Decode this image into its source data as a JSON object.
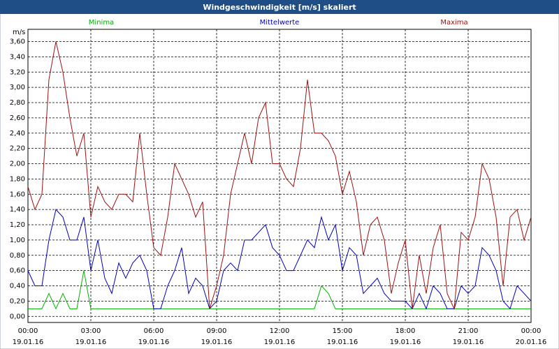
{
  "chart_data": {
    "type": "line",
    "title": "Windgeschwindigkeit [m/s] skaliert",
    "y_unit": "m/s",
    "x": [
      0,
      20,
      40,
      60,
      80,
      100,
      120,
      140,
      160,
      180,
      200,
      220,
      240,
      260,
      280,
      300,
      320,
      340,
      360,
      380,
      400,
      420,
      440,
      460,
      480,
      500,
      520,
      540,
      560,
      580,
      600,
      620,
      640,
      660,
      680,
      700,
      720,
      740,
      760,
      780,
      800,
      820,
      840,
      860,
      880,
      900,
      920,
      940,
      960,
      980,
      1000,
      1020,
      1040,
      1060,
      1080,
      1100,
      1120,
      1140,
      1160,
      1180,
      1200,
      1220,
      1240,
      1260,
      1280,
      1300,
      1320,
      1340,
      1360,
      1380,
      1400,
      1420,
      1440
    ],
    "xlim": [
      0,
      1440
    ],
    "xticks": [
      {
        "value": 0,
        "label": "00:00",
        "date": "19.01.16"
      },
      {
        "value": 180,
        "label": "03:00",
        "date": "19.01.16"
      },
      {
        "value": 360,
        "label": "06:00",
        "date": "19.01.16"
      },
      {
        "value": 540,
        "label": "09:00",
        "date": "19.01.16"
      },
      {
        "value": 720,
        "label": "12:00",
        "date": "19.01.16"
      },
      {
        "value": 900,
        "label": "15:00",
        "date": "19.01.16"
      },
      {
        "value": 1080,
        "label": "18:00",
        "date": "19.01.16"
      },
      {
        "value": 1260,
        "label": "21:00",
        "date": "19.01.16"
      },
      {
        "value": 1440,
        "label": "00:00",
        "date": "20.01.16"
      }
    ],
    "ylim": [
      -0.08,
      3.76
    ],
    "yticks": [
      {
        "value": 0,
        "label": "0,00"
      },
      {
        "value": 0.2,
        "label": "0,20"
      },
      {
        "value": 0.4,
        "label": "0,40"
      },
      {
        "value": 0.6,
        "label": "0,60"
      },
      {
        "value": 0.8,
        "label": "0,80"
      },
      {
        "value": 1.0,
        "label": "1,00"
      },
      {
        "value": 1.2,
        "label": "1,20"
      },
      {
        "value": 1.4,
        "label": "1,40"
      },
      {
        "value": 1.6,
        "label": "1,60"
      },
      {
        "value": 1.8,
        "label": "1,80"
      },
      {
        "value": 2.0,
        "label": "2,00"
      },
      {
        "value": 2.2,
        "label": "2,20"
      },
      {
        "value": 2.4,
        "label": "2,40"
      },
      {
        "value": 2.6,
        "label": "2,60"
      },
      {
        "value": 2.8,
        "label": "2,80"
      },
      {
        "value": 3.0,
        "label": "3,00"
      },
      {
        "value": 3.2,
        "label": "3,20"
      },
      {
        "value": 3.4,
        "label": "3,40"
      },
      {
        "value": 3.6,
        "label": "3,60"
      }
    ],
    "grid": true,
    "series": [
      {
        "name": "Minima",
        "color": "#00b000",
        "values": [
          0.1,
          0.1,
          0.1,
          0.3,
          0.1,
          0.3,
          0.1,
          0.1,
          0.6,
          0.1,
          0.1,
          0.1,
          0.1,
          0.1,
          0.1,
          0.1,
          0.1,
          0.1,
          0.1,
          0.1,
          0.1,
          0.1,
          0.1,
          0.1,
          0.1,
          0.1,
          0.1,
          0.1,
          0.1,
          0.1,
          0.1,
          0.1,
          0.1,
          0.1,
          0.1,
          0.1,
          0.1,
          0.1,
          0.1,
          0.1,
          0.1,
          0.1,
          0.4,
          0.3,
          0.1,
          0.1,
          0.1,
          0.1,
          0.1,
          0.1,
          0.1,
          0.1,
          0.1,
          0.1,
          0.1,
          0.1,
          0.1,
          0.1,
          0.1,
          0.1,
          0.1,
          0.1,
          0.1,
          0.1,
          0.1,
          0.1,
          0.1,
          0.1,
          0.1,
          0.1,
          0.1,
          0.1,
          0.1
        ]
      },
      {
        "name": "Mittelwerte",
        "color": "#0000c0",
        "values": [
          0.6,
          0.4,
          0.4,
          1.0,
          1.4,
          1.3,
          1.0,
          1.0,
          1.3,
          0.6,
          1.0,
          0.5,
          0.3,
          0.7,
          0.5,
          0.7,
          0.8,
          0.6,
          0.1,
          0.1,
          0.4,
          0.6,
          0.9,
          0.3,
          0.5,
          0.4,
          0.1,
          0.2,
          0.6,
          0.7,
          0.6,
          1.0,
          1.0,
          1.1,
          1.2,
          0.9,
          0.8,
          0.6,
          0.6,
          0.8,
          1.0,
          0.9,
          1.3,
          1.0,
          1.2,
          0.6,
          0.9,
          0.8,
          0.3,
          0.4,
          0.5,
          0.3,
          0.2,
          0.2,
          0.2,
          0.1,
          0.3,
          0.1,
          0.4,
          0.3,
          0.1,
          0.1,
          0.4,
          0.3,
          0.4,
          0.9,
          0.8,
          0.6,
          0.2,
          0.1,
          0.4,
          0.3,
          0.2
        ]
      },
      {
        "name": "Maxima",
        "color": "#a01010",
        "values": [
          1.7,
          1.4,
          1.6,
          3.1,
          3.6,
          3.2,
          2.6,
          2.1,
          2.4,
          1.3,
          1.7,
          1.5,
          1.4,
          1.6,
          1.6,
          1.5,
          2.4,
          1.6,
          0.9,
          0.8,
          1.3,
          2.0,
          1.8,
          1.6,
          1.3,
          1.5,
          0.1,
          0.4,
          0.8,
          1.6,
          2.0,
          2.4,
          2.0,
          2.6,
          2.8,
          2.0,
          2.0,
          1.8,
          1.7,
          2.2,
          3.1,
          2.4,
          2.4,
          2.3,
          2.1,
          1.6,
          1.9,
          1.5,
          0.8,
          1.2,
          1.3,
          1.0,
          0.3,
          0.7,
          1.0,
          0.1,
          0.8,
          0.3,
          0.9,
          1.2,
          0.3,
          0.1,
          1.1,
          1.0,
          1.3,
          2.0,
          1.8,
          1.3,
          0.4,
          1.3,
          1.4,
          1.0,
          1.3
        ]
      }
    ]
  }
}
